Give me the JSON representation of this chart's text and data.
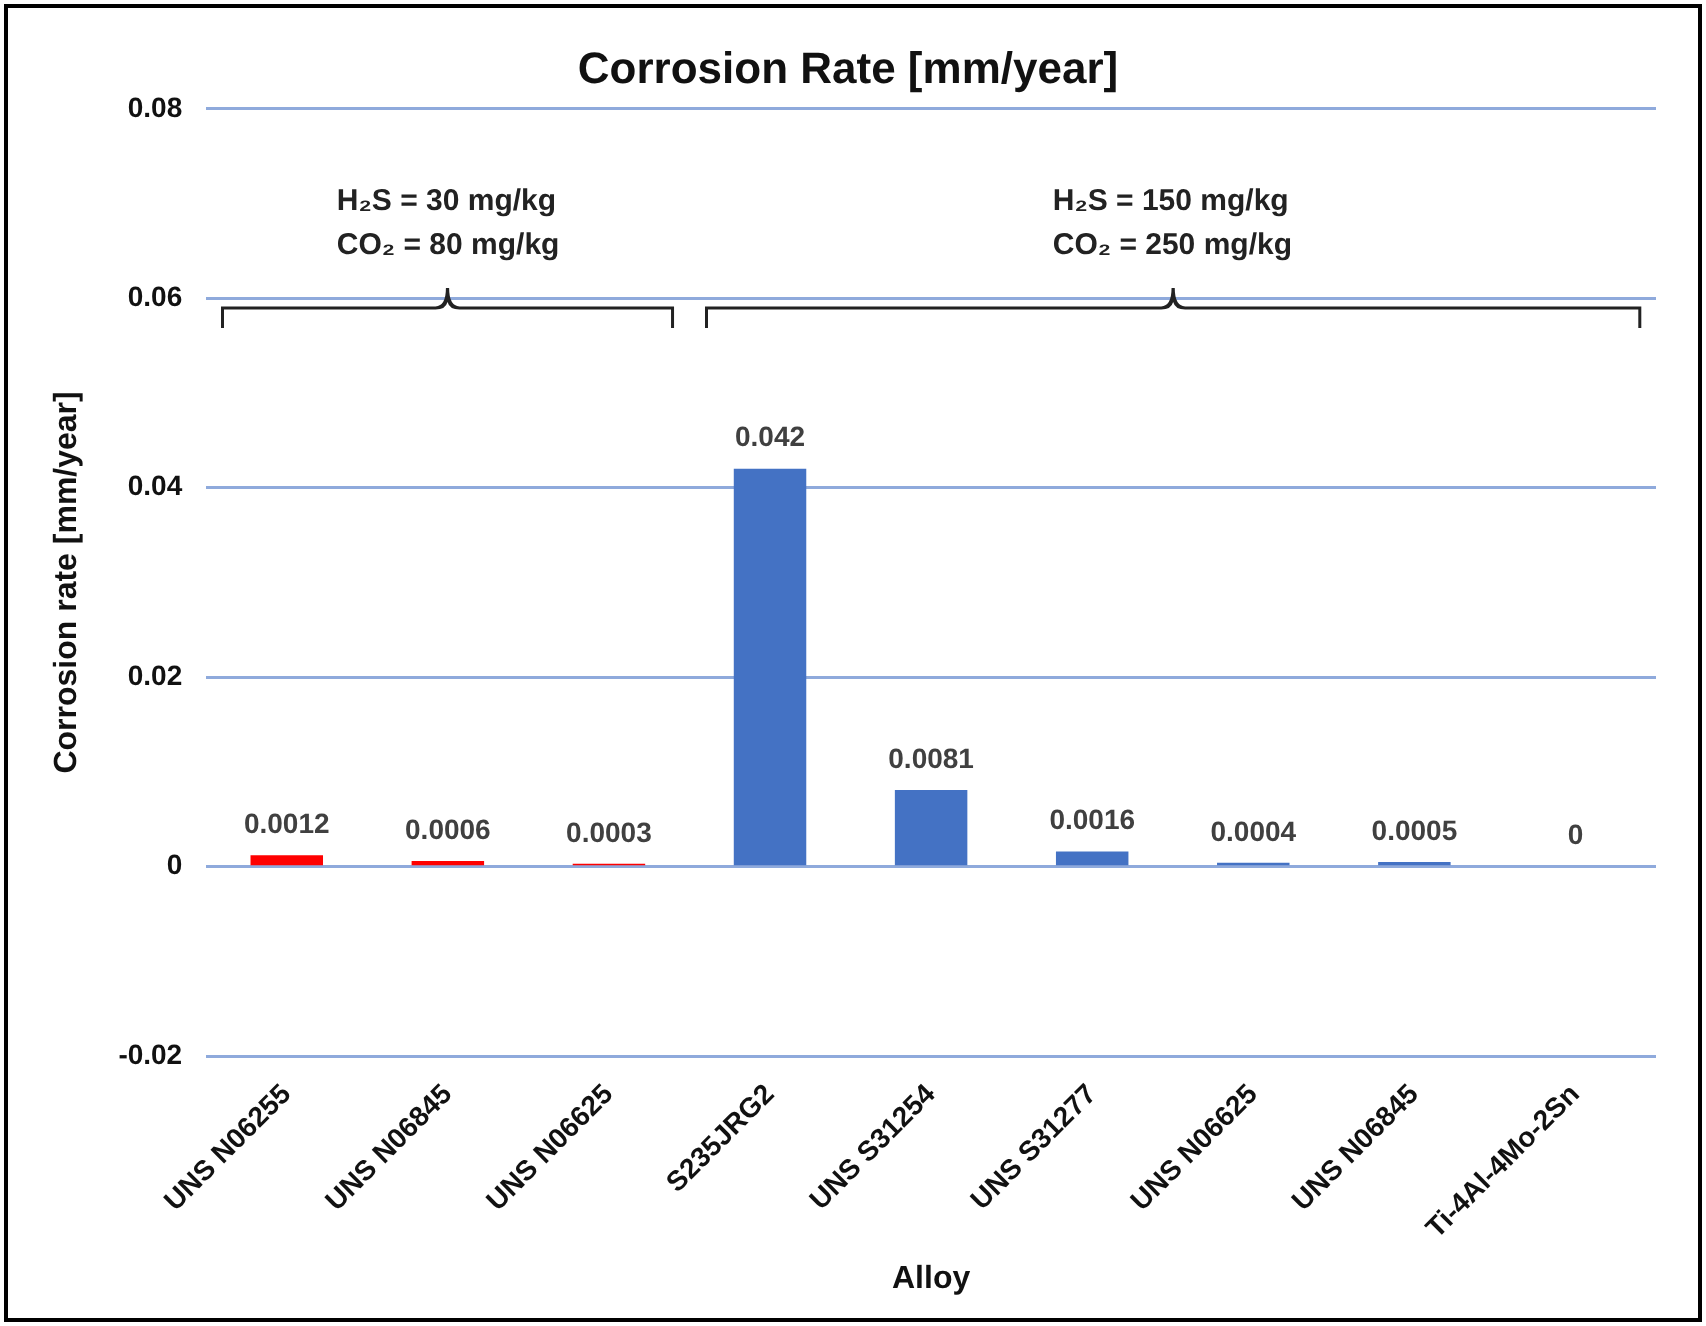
{
  "chart_data": {
    "type": "bar",
    "title": "Corrosion Rate [mm/year]",
    "xlabel": "Alloy",
    "ylabel": "Corrosion rate [mm/year]",
    "categories": [
      "UNS N06255",
      "UNS N06845",
      "UNS N06625",
      "S235JRG2",
      "UNS S31254",
      "UNS S31277",
      "UNS N06625",
      "UNS N06845",
      "Ti-4Al-4Mo-2Sn"
    ],
    "values": [
      0.0012,
      0.0006,
      0.0003,
      0.042,
      0.0081,
      0.0016,
      0.0004,
      0.0005,
      0
    ],
    "colors": [
      "#ff0000",
      "#ff0000",
      "#ff0000",
      "#4472c4",
      "#4472c4",
      "#4472c4",
      "#4472c4",
      "#4472c4",
      "#4472c4"
    ],
    "ylim": [
      -0.02,
      0.08
    ],
    "yticks": [
      -0.02,
      0,
      0.02,
      0.04,
      0.06,
      0.08
    ],
    "grid": "y",
    "data_labels": true,
    "legend": false,
    "annotations": [
      "H₂S = 30 mg/kg\nCO₂ = 80 mg/kg",
      "H₂S = 150 mg/kg\nCO₂ = 250 mg/kg"
    ]
  }
}
